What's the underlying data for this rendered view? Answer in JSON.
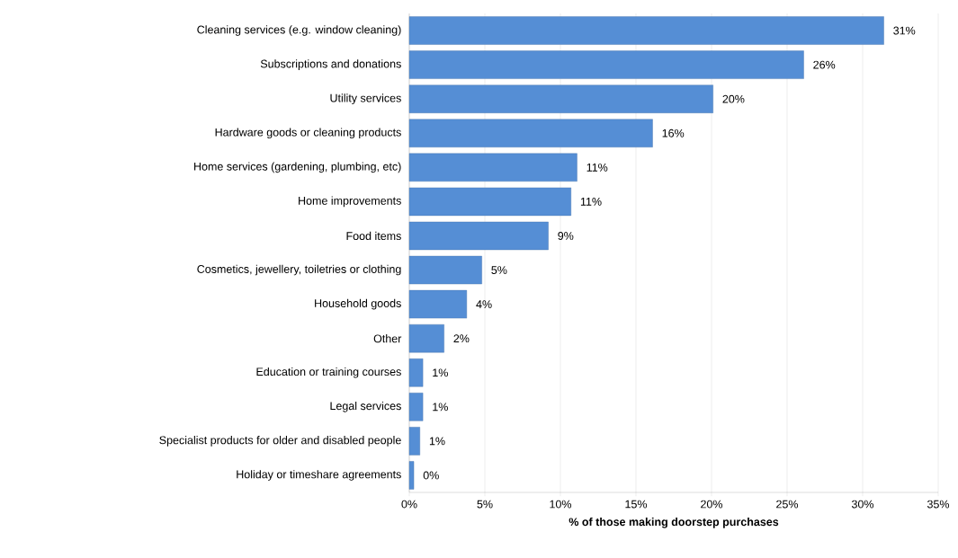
{
  "chart_data": {
    "type": "bar",
    "orientation": "horizontal",
    "xlabel": "% of those making doorstep purchases",
    "categories": [
      "Cleaning services (e.g. window cleaning)",
      "Subscriptions and donations",
      "Utility services",
      "Hardware goods or cleaning products",
      "Home services (gardening, plumbing,  etc)",
      "Home improvements",
      "Food items",
      "Cosmetics, jewellery, toiletries or clothing",
      "Household goods",
      "Other",
      "Education or training courses",
      "Legal services",
      "Specialist products for older and disabled people",
      "Holiday or timeshare agreements"
    ],
    "values": [
      31.4,
      26.1,
      20.1,
      16.1,
      11.1,
      10.7,
      9.2,
      4.8,
      3.8,
      2.3,
      0.9,
      0.9,
      0.7,
      0.3
    ],
    "value_labels": [
      "31%",
      "26%",
      "20%",
      "16%",
      "11%",
      "11%",
      "9%",
      "5%",
      "4%",
      "2%",
      "1%",
      "1%",
      "1%",
      "0%"
    ],
    "color": "#558ed5",
    "xlim": [
      0,
      35
    ],
    "xticks": [
      {
        "value": 0,
        "label": "0%"
      },
      {
        "value": 5,
        "label": "5%"
      },
      {
        "value": 10,
        "label": "10%"
      },
      {
        "value": 15,
        "label": "15%"
      },
      {
        "value": 20,
        "label": "20%"
      },
      {
        "value": 25,
        "label": "25%"
      },
      {
        "value": 30,
        "label": "30%"
      },
      {
        "value": 35,
        "label": "35%"
      }
    ],
    "grid": "x"
  }
}
